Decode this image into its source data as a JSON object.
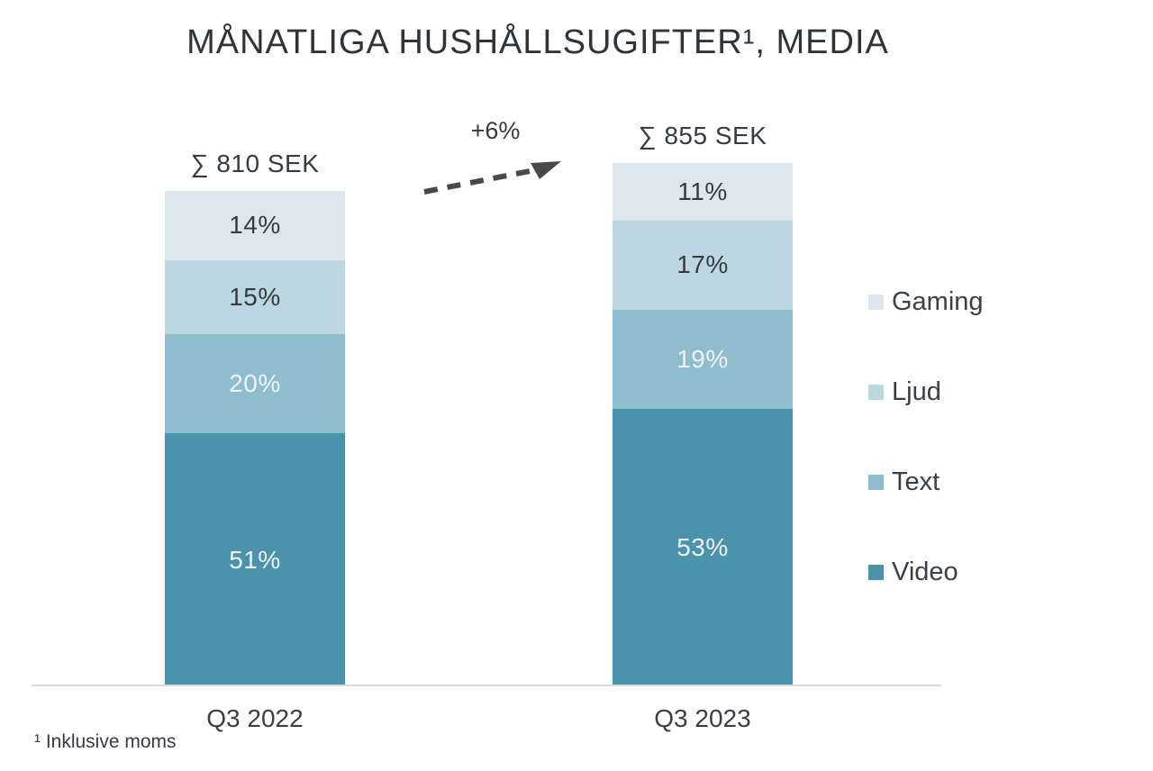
{
  "chart_data": {
    "type": "bar",
    "stacked": true,
    "title": "MÅNATLIGA HUSHÅLLSUGIFTER¹, MEDIA",
    "categories": [
      "Q3 2022",
      "Q3 2023"
    ],
    "totals": [
      {
        "label": "∑ 810 SEK",
        "value_sek": 810
      },
      {
        "label": "∑ 855 SEK",
        "value_sek": 855
      }
    ],
    "series": [
      {
        "name": "Gaming",
        "color": "#DCE8EE",
        "values_pct": [
          14,
          11
        ],
        "label_style": "dark"
      },
      {
        "name": "Ljud",
        "color": "#BCD7E1",
        "values_pct": [
          15,
          17
        ],
        "label_style": "dark"
      },
      {
        "name": "Text",
        "color": "#8FBDCE",
        "values_pct": [
          20,
          19
        ],
        "label_style": "light"
      },
      {
        "name": "Video",
        "color": "#4B92AB",
        "values_pct": [
          51,
          53
        ],
        "label_style": "light"
      }
    ],
    "change_annotation": "+6%",
    "legend_position": "right",
    "grid": false,
    "footnote": "¹ Inklusive moms"
  },
  "colors": {
    "title_text": "#2F3438",
    "label_dark": "#363B40",
    "label_light": "#ECF4F7",
    "axis_line": "#D8DBDD",
    "arrow": "#47494B",
    "background": "#FFFFFF"
  }
}
